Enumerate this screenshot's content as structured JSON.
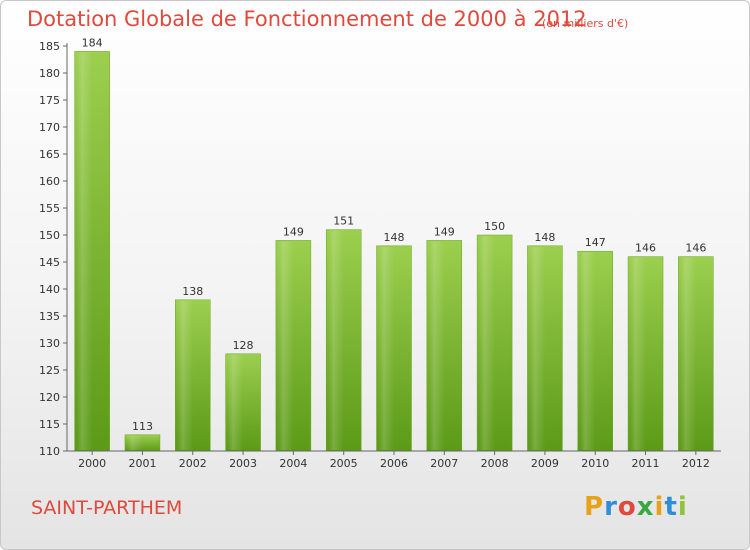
{
  "header": {
    "title": "Dotation Globale de Fonctionnement de 2000 à 2012",
    "subtitle": "(en milliers d'€)"
  },
  "footer": {
    "commune": "SAINT-PARTHEM",
    "logo_text": "Proxiti"
  },
  "colors": {
    "title": "#e0493c",
    "bar_top": "#9ccf4e",
    "bar_bottom": "#5b9a17",
    "axis": "#666666"
  },
  "chart_data": {
    "type": "bar",
    "title": "Dotation Globale de Fonctionnement de 2000 à 2012",
    "subtitle": "(en milliers d'€)",
    "xlabel": "",
    "ylabel": "",
    "categories": [
      "2000",
      "2001",
      "2002",
      "2003",
      "2004",
      "2005",
      "2006",
      "2007",
      "2008",
      "2009",
      "2010",
      "2011",
      "2012"
    ],
    "values": [
      184,
      113,
      138,
      128,
      149,
      151,
      148,
      149,
      150,
      148,
      147,
      146,
      146
    ],
    "ylim": [
      110,
      185
    ],
    "yticks": [
      110,
      115,
      120,
      125,
      130,
      135,
      140,
      145,
      150,
      155,
      160,
      165,
      170,
      175,
      180,
      185
    ],
    "grid": false,
    "data_labels": true
  }
}
